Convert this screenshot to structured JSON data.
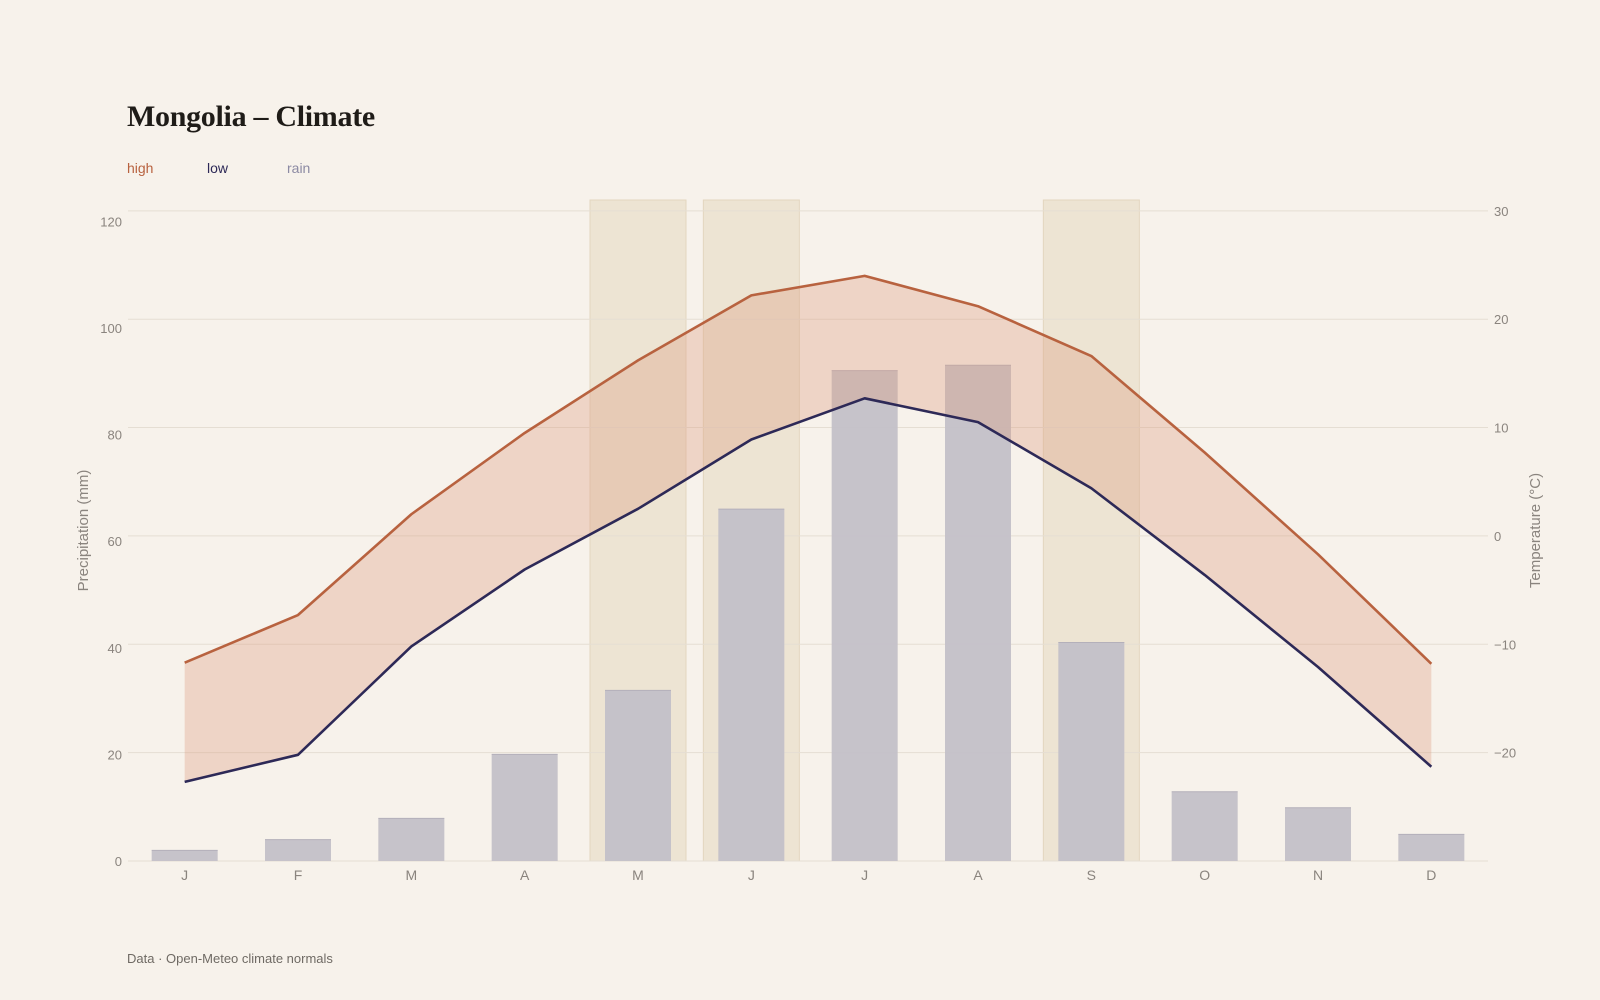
{
  "title": "Mongolia – Climate",
  "legend": {
    "items": [
      {
        "label": "high",
        "color": "#b8623f"
      },
      {
        "label": "low",
        "color": "#2d2957"
      },
      {
        "label": "rain",
        "color": "#8c8aa3"
      }
    ]
  },
  "footer": "Data · Open-Meteo climate normals",
  "colors": {
    "background": "#f7f2eb",
    "high": "#b8623f",
    "low": "#2d2957",
    "rain_bar": "#c3c0c8",
    "band_fill": "#dc9e82",
    "highlight": "#eadfcb",
    "grid": "#e5ded3",
    "tick_text": "#8a847e"
  },
  "chart_data": {
    "type": "bar",
    "categories": [
      "J",
      "F",
      "M",
      "A",
      "M",
      "J",
      "J",
      "A",
      "S",
      "O",
      "N",
      "D"
    ],
    "series": [
      {
        "name": "rain",
        "axis": "left",
        "chart_type": "bar",
        "values": [
          2,
          4,
          8,
          20,
          32,
          66,
          92,
          93,
          41,
          13,
          10,
          5
        ]
      },
      {
        "name": "high",
        "axis": "right",
        "chart_type": "line",
        "values": [
          -11.7,
          -7.3,
          2.0,
          9.5,
          16.2,
          22.2,
          24.0,
          21.2,
          16.6,
          7.7,
          -1.7,
          -11.8
        ]
      },
      {
        "name": "low",
        "axis": "right",
        "chart_type": "line",
        "values": [
          -22.7,
          -20.2,
          -10.2,
          -3.1,
          2.5,
          8.9,
          12.7,
          10.5,
          4.4,
          -3.6,
          -12.1,
          -21.3
        ]
      }
    ],
    "highlighted_months": [
      4,
      5,
      8
    ],
    "left_axis": {
      "label": "Precipitation (mm)",
      "ylim": [
        0,
        124
      ],
      "ticks": [
        0,
        20,
        40,
        60,
        80,
        100,
        120
      ]
    },
    "right_axis": {
      "label": "Temperature (°C)",
      "ylim": [
        -30,
        31
      ],
      "ticks": [
        -20,
        -10,
        0,
        10,
        20,
        30
      ],
      "tick_labels": [
        "−20",
        "−10",
        "0",
        "10",
        "20",
        "30"
      ]
    },
    "grid": true
  }
}
